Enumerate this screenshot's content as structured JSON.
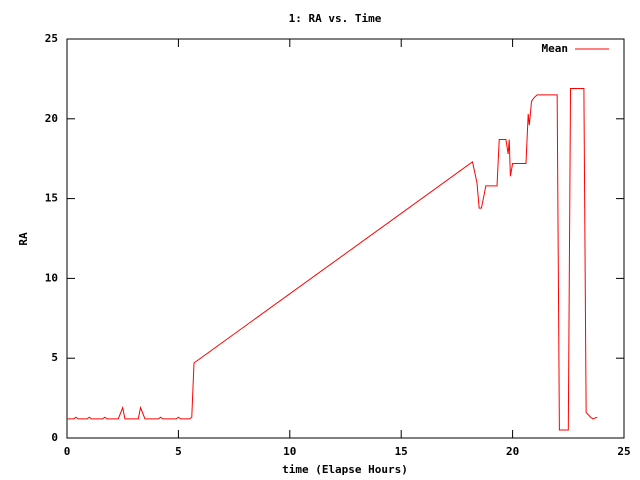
{
  "chart_data": {
    "type": "line",
    "title": "1: RA vs. Time",
    "x_label": "time (Elapse Hours)",
    "y_label": "RA",
    "x": [
      0,
      0.3,
      0.4,
      0.5,
      0.9,
      1.0,
      1.1,
      1.6,
      1.7,
      1.8,
      2.3,
      2.5,
      2.6,
      3.2,
      3.3,
      3.5,
      4.1,
      4.2,
      4.3,
      4.9,
      5.0,
      5.1,
      5.5,
      5.6,
      5.7,
      18.2,
      18.4,
      18.5,
      18.6,
      18.8,
      19.3,
      19.4,
      19.7,
      19.8,
      19.85,
      19.9,
      20.0,
      20.6,
      20.7,
      20.75,
      20.85,
      20.95,
      21.1,
      22.0,
      22.1,
      22.5,
      22.6,
      23.2,
      23.3,
      23.5,
      23.6,
      23.8
    ],
    "series": [
      {
        "name": "Mean",
        "color": "#ff0000",
        "values": [
          1.2,
          1.2,
          1.3,
          1.2,
          1.2,
          1.3,
          1.2,
          1.2,
          1.3,
          1.2,
          1.2,
          1.9,
          1.2,
          1.2,
          1.9,
          1.2,
          1.2,
          1.3,
          1.2,
          1.2,
          1.3,
          1.2,
          1.2,
          1.3,
          4.7,
          17.3,
          16.0,
          14.4,
          14.4,
          15.8,
          15.8,
          18.7,
          18.7,
          17.8,
          18.7,
          16.4,
          17.2,
          17.2,
          20.3,
          19.6,
          21.1,
          21.3,
          21.5,
          21.5,
          0.5,
          0.5,
          21.9,
          21.9,
          1.6,
          1.3,
          1.2,
          1.3
        ]
      }
    ],
    "xlim": [
      0,
      25
    ],
    "ylim": [
      0,
      25
    ],
    "xticks": [
      0,
      5,
      10,
      15,
      20,
      25
    ],
    "yticks": [
      0,
      5,
      10,
      15,
      20,
      25
    ],
    "grid": false,
    "legend": "top-right"
  }
}
